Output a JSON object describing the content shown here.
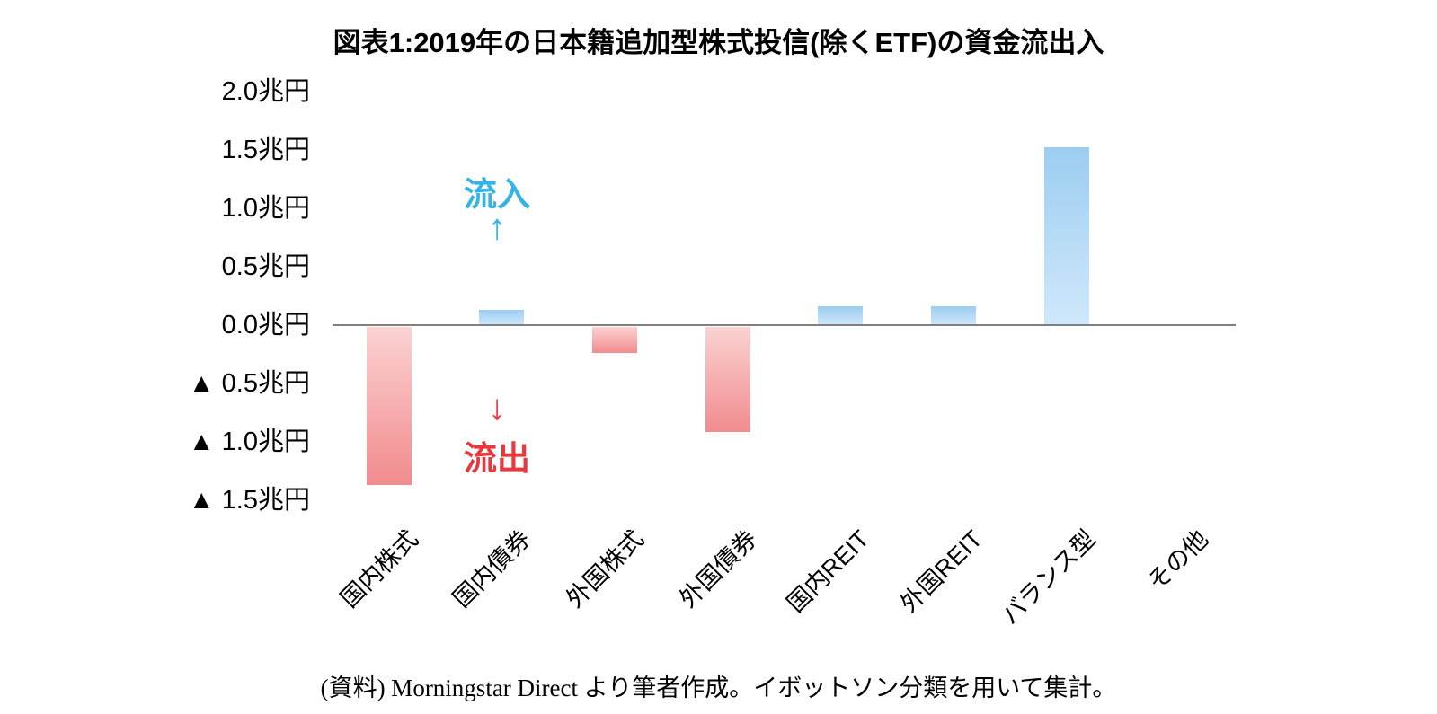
{
  "title": "図表1:2019年の日本籍追加型株式投信(除くETF)の資金流出入",
  "annotations": {
    "inflow_label": "流入",
    "inflow_arrow": "↑",
    "outflow_label": "流出",
    "outflow_arrow": "↓"
  },
  "source_note": "(資料) Morningstar Direct より筆者作成。イボットソン分類を用いて集計。",
  "colors": {
    "positive_bar_top": "#9ccdf0",
    "positive_bar_bottom": "#cfe8fb",
    "negative_bar_top": "#fbd2d2",
    "negative_bar_bottom": "#f18b8e",
    "inflow_text": "#33b3e6",
    "outflow_text": "#e8383d",
    "axis_line": "#808080"
  },
  "y_axis": {
    "tick_labels": [
      "2.0兆円",
      "1.5兆円",
      "1.0兆円",
      "0.5兆円",
      "0.0兆円",
      "▲ 0.5兆円",
      "▲ 1.0兆円",
      "▲ 1.5兆円"
    ],
    "tick_values": [
      2.0,
      1.5,
      1.0,
      0.5,
      0.0,
      -0.5,
      -1.0,
      -1.5
    ]
  },
  "chart_data": {
    "type": "bar",
    "title": "図表1:2019年の日本籍追加型株式投信(除くETF)の資金流出入",
    "categories": [
      "国内株式",
      "国内債券",
      "外国株式",
      "外国債券",
      "国内REIT",
      "外国REIT",
      "バランス型",
      "その他"
    ],
    "values": [
      -1.35,
      0.13,
      -0.22,
      -0.9,
      0.16,
      0.16,
      1.52,
      0.0
    ],
    "unit": "兆円",
    "xlabel": "",
    "ylabel": "兆円",
    "ylim": [
      -1.5,
      2.0
    ],
    "grid": false,
    "legend": "none",
    "notes": "Positive (blue) bars = 流入 inflow, negative (red) bars = 流出 outflow. ▲ denotes negative values."
  }
}
